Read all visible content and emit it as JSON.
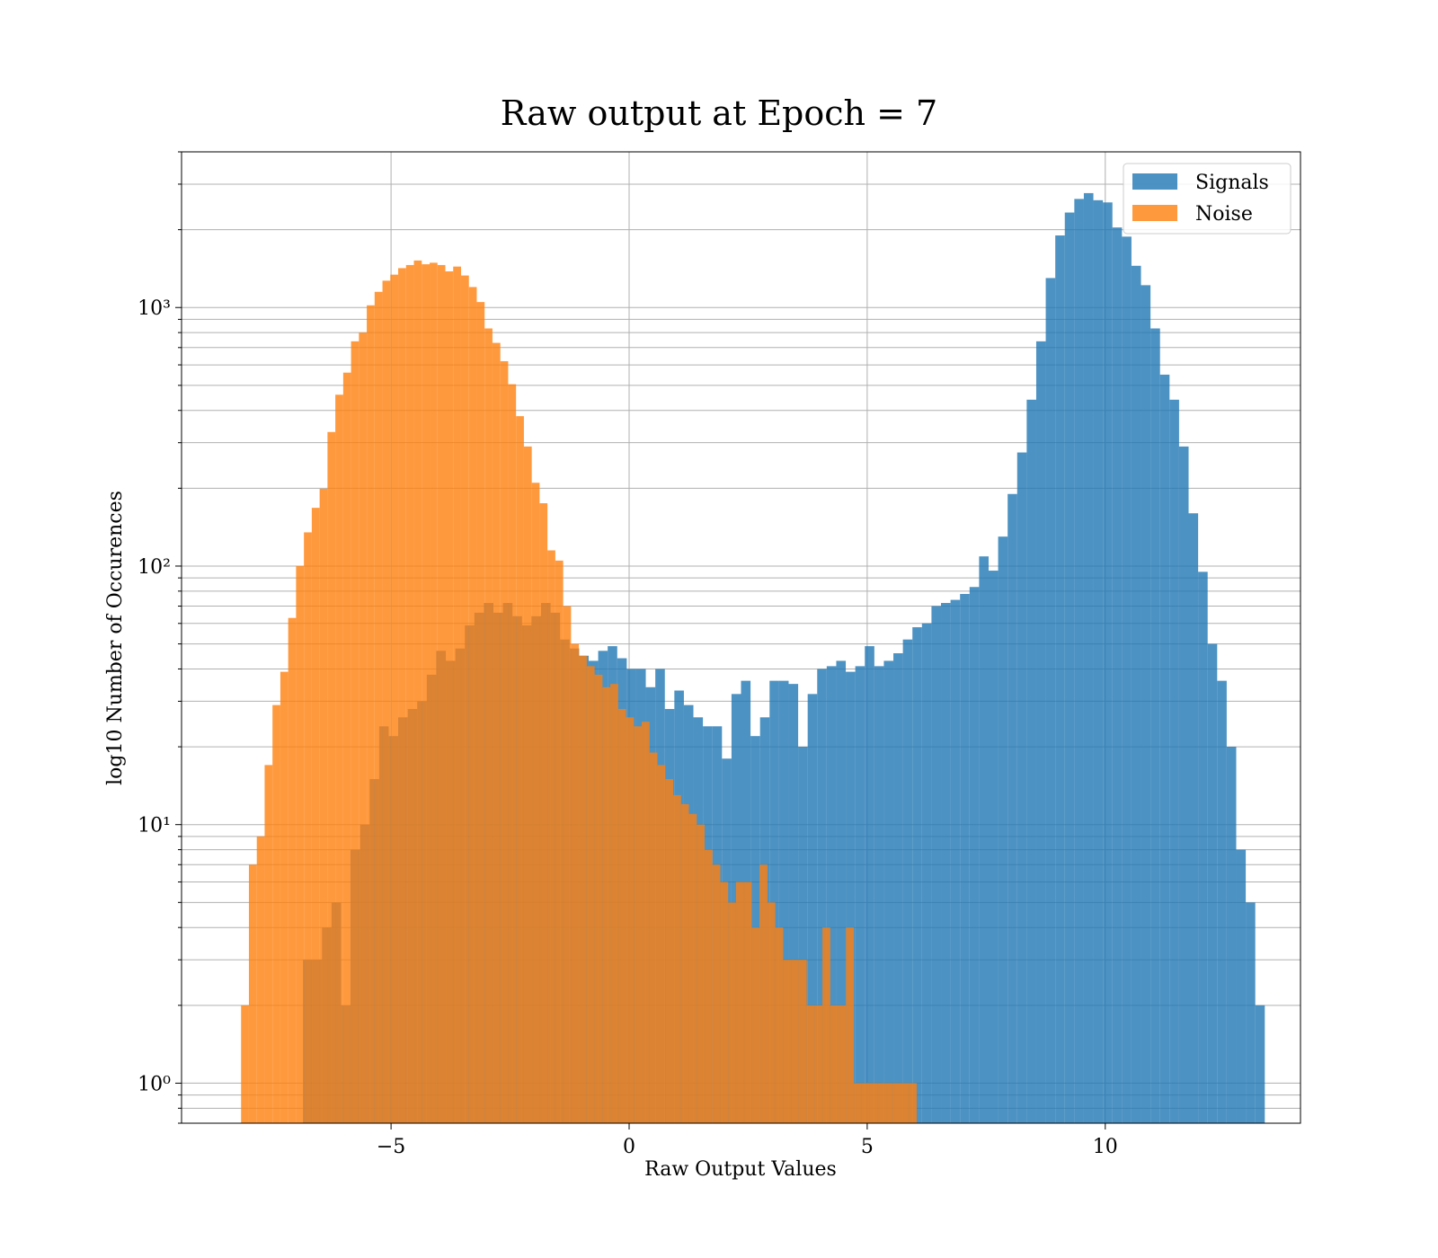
{
  "chart_data": {
    "type": "bar",
    "title": "Raw output at Epoch = 7",
    "xlabel": "Raw Output Values",
    "ylabel": "log10 Number of Occurences",
    "yscale": "log",
    "xlim": [
      -9.4,
      14.1
    ],
    "ylim": [
      0.7,
      4000
    ],
    "xticks": [
      -5,
      0,
      5,
      10
    ],
    "xtick_labels": [
      "−5",
      "0",
      "5",
      "10"
    ],
    "yticks": [
      1,
      10,
      100,
      1000
    ],
    "ytick_labels": [
      "10⁰",
      "10¹",
      "10²",
      "10³"
    ],
    "grid": true,
    "legend_position": "top-right",
    "series": [
      {
        "name": "Signals",
        "color": "#1f77b4",
        "bin_start": -6.85,
        "bin_width": 0.2,
        "values": [
          3,
          3,
          4,
          5,
          2,
          8,
          10,
          15,
          24,
          22,
          26,
          28,
          30,
          38,
          47,
          43,
          48,
          59,
          66,
          72,
          66,
          72,
          64,
          59,
          64,
          72,
          66,
          52,
          48,
          45,
          43,
          47,
          49,
          44,
          40,
          40,
          34,
          40,
          28,
          33,
          29,
          26,
          24,
          24,
          18,
          32,
          36,
          22,
          26,
          36,
          36,
          35,
          20,
          32,
          40,
          41,
          43,
          39,
          41,
          49,
          41,
          43,
          46,
          52,
          58,
          60,
          70,
          72,
          74,
          78,
          83,
          109,
          96,
          130,
          190,
          275,
          440,
          740,
          1300,
          1900,
          2330,
          2630,
          2770,
          2600,
          2550,
          2040,
          1880,
          1450,
          1220,
          830,
          550,
          440,
          290,
          160,
          95,
          50,
          36,
          20,
          8,
          5,
          2
        ]
      },
      {
        "name": "Noise",
        "color": "#ff7f0e",
        "bin_start": -8.15,
        "bin_width": 0.165,
        "values": [
          2,
          7,
          9,
          17,
          29,
          39,
          63,
          100,
          135,
          168,
          199,
          330,
          460,
          560,
          740,
          800,
          1020,
          1150,
          1270,
          1340,
          1420,
          1460,
          1520,
          1470,
          1490,
          1460,
          1380,
          1440,
          1330,
          1200,
          1050,
          830,
          730,
          620,
          505,
          380,
          290,
          210,
          175,
          115,
          105,
          70,
          50,
          45,
          41,
          38,
          34,
          35,
          28,
          26,
          24,
          25,
          19,
          17,
          15,
          13,
          12,
          11,
          10,
          8,
          7,
          6,
          5,
          6,
          6,
          4,
          7,
          5,
          4,
          3,
          3,
          3,
          2,
          2,
          4,
          2,
          2,
          4,
          1,
          1,
          1,
          1,
          1,
          1,
          1,
          1
        ]
      }
    ]
  },
  "legend": {
    "items": [
      {
        "label": "Signals",
        "color": "#1f77b4"
      },
      {
        "label": "Noise",
        "color": "#ff7f0e"
      }
    ]
  }
}
